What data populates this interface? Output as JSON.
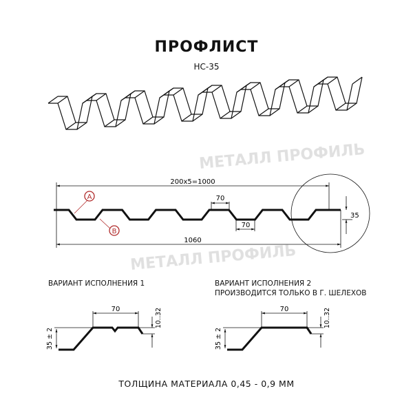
{
  "title": "ПРОФЛИСТ",
  "model": "НС-35",
  "watermark": "МЕТАЛЛ ПРОФИЛЬ",
  "dimensions": {
    "pitch": "200x5=1000",
    "width": "1060",
    "top_flat": "70",
    "bottom_flat": "70",
    "height": "35",
    "marker_a": "A",
    "marker_b": "B"
  },
  "variant1": {
    "label": "ВАРИАНТ ИСПОЛНЕНИЯ 1",
    "width": "70",
    "height": "35 ± 2",
    "bend": "10..32"
  },
  "variant2": {
    "label": "ВАРИАНТ ИСПОЛНЕНИЯ 2",
    "note": "ПРОИЗВОДИТСЯ ТОЛЬКО В Г. ШЕЛЕХОВ",
    "width": "70",
    "height": "35 ± 2",
    "bend": "10..32"
  },
  "footer": "ТОЛЩИНА МАТЕРИАЛА 0,45 - 0,9 ММ",
  "colors": {
    "marker": "#b02a2a",
    "watermark": "#d9d9d9",
    "line": "#111111"
  }
}
